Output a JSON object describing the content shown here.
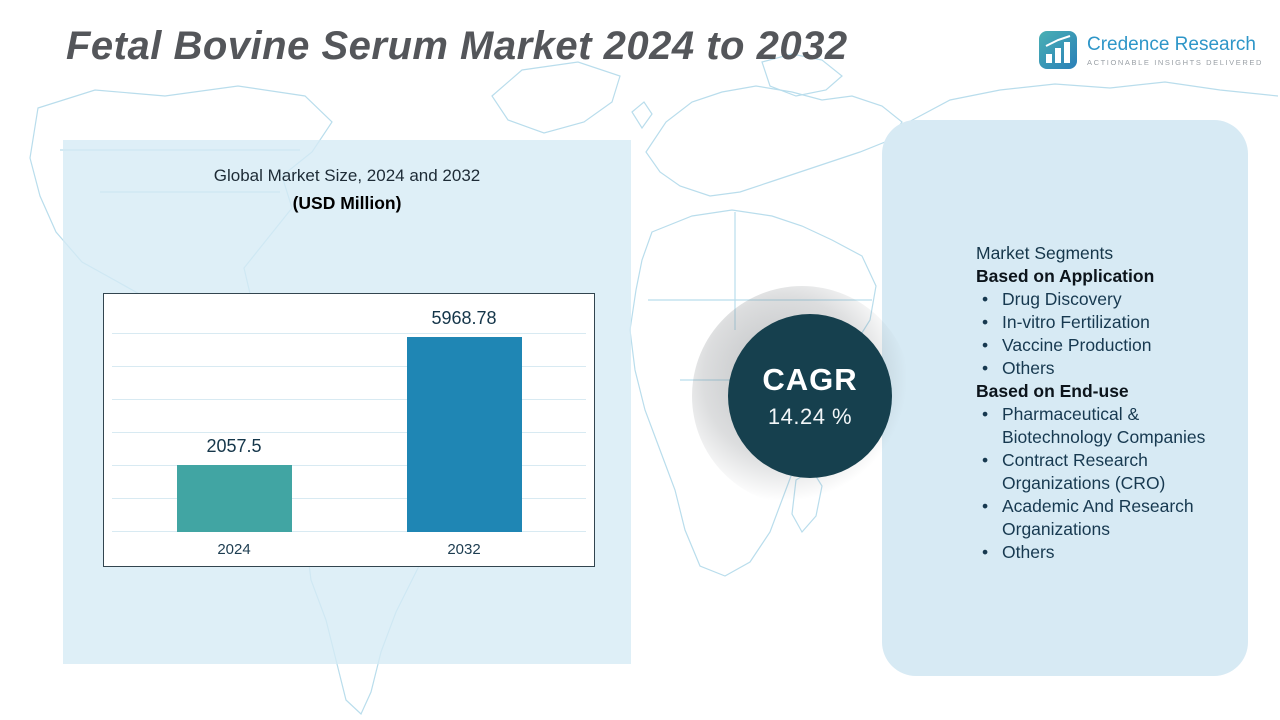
{
  "title": "Fetal Bovine Serum Market 2024 to 2032",
  "logo": {
    "name": "Credence Research",
    "tagline": "ACTIONABLE INSIGHTS DELIVERED"
  },
  "chart_panel": {
    "heading_line1": "Global Market Size, 2024 and 2032",
    "heading_line2": "(USD Million)"
  },
  "chart_data": {
    "type": "bar",
    "title": "Global Market Size, 2024 and 2032 (USD Million)",
    "categories": [
      "2024",
      "2032"
    ],
    "values": [
      2057.5,
      5968.78
    ],
    "value_labels": [
      "2057.5",
      "5968.78"
    ],
    "bar_colors": [
      "#41a5a3",
      "#1f86b4"
    ],
    "xlabel": "",
    "ylabel": "",
    "ylim": [
      0,
      6500
    ],
    "grid": true,
    "legend": false
  },
  "cagr": {
    "label": "CAGR",
    "value": "14.24 %"
  },
  "segments": {
    "heading": "Market Segments",
    "groups": [
      {
        "title": "Based on Application",
        "items": [
          "Drug Discovery",
          "In-vitro Fertilization",
          "Vaccine Production",
          "Others"
        ]
      },
      {
        "title": "Based on End-use",
        "items": [
          "Pharmaceutical & Biotechnology Companies",
          "Contract Research Organizations (CRO)",
          "Academic And Research Organizations",
          "Others"
        ]
      }
    ]
  },
  "colors": {
    "bar_2024": "#41a5a3",
    "bar_2032": "#1f86b4",
    "cagr_circle": "#16404e",
    "panel_background": "#d7eaf4",
    "map_line": "#b9ddec",
    "title_text": "#54565a",
    "logo_blue": "#2e96c8"
  }
}
